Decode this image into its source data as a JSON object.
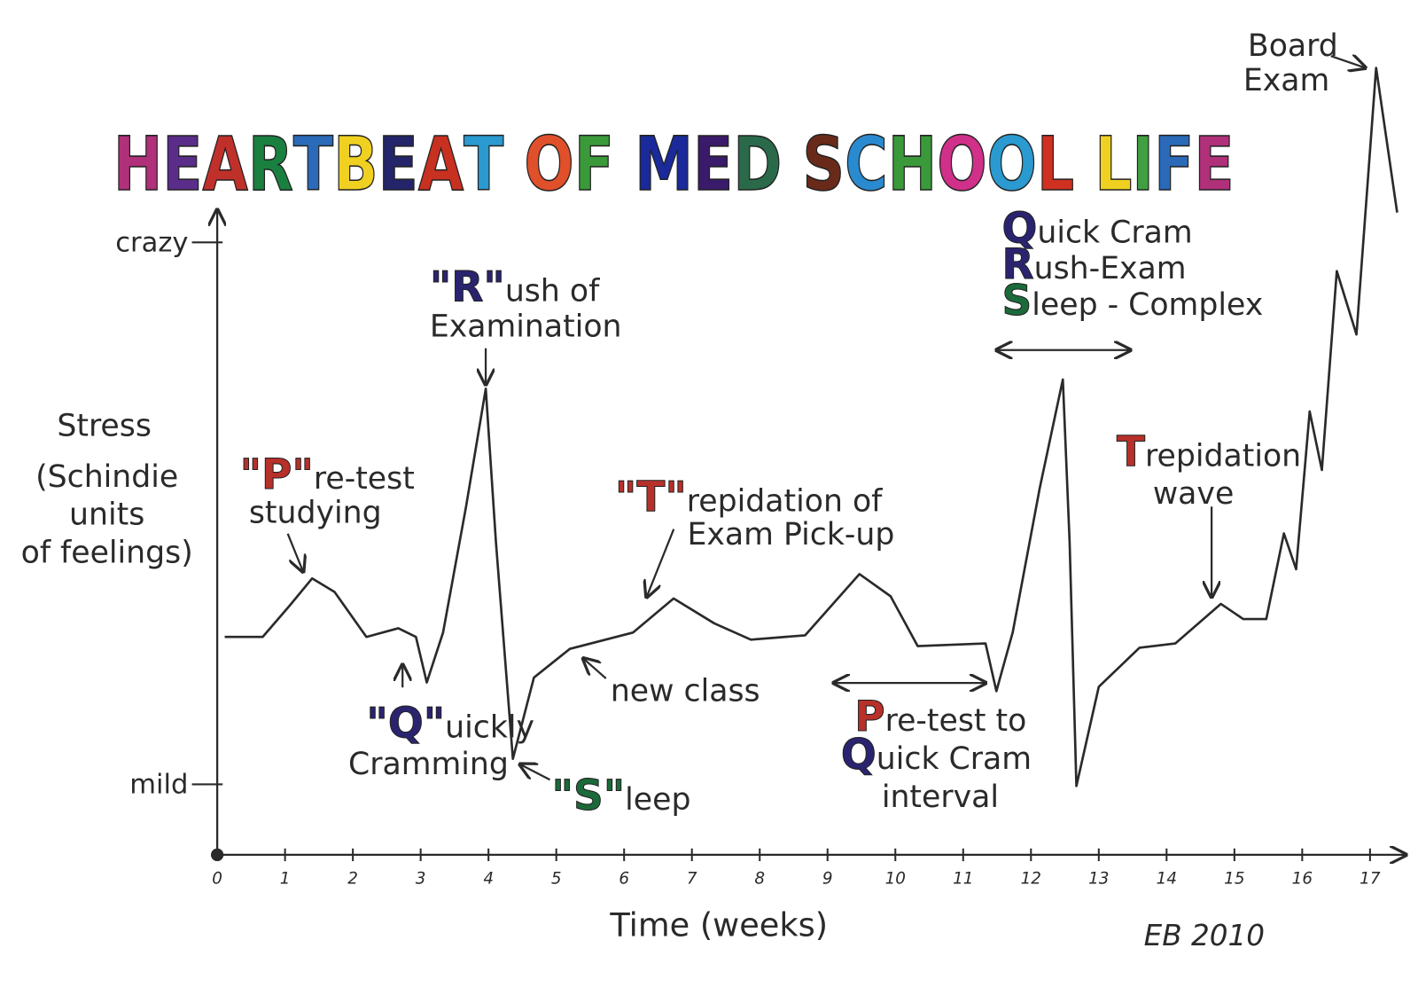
{
  "chart_data": {
    "type": "line",
    "title": "HEARTBEAT OF MED SCHOOL LIFE",
    "title_palette": [
      "#b0307a",
      "#5a2d8a",
      "#c0302a",
      "#1a8040",
      "#2a6ab8",
      "#f0d020",
      "#24246a",
      "#c83020",
      "#2a9ad0",
      "#e0502a",
      "#3a9a3a",
      "#1a2a9a",
      "#3a1a6a",
      "#2a6a4a",
      "#6a2a1a",
      "#2a8ad0",
      "#3a9a3a",
      "#d0308a",
      "#2a9ad0",
      "#d03020",
      "#f0d020",
      "#40a040",
      "#2a6ab8"
    ],
    "x_label": "Time (weeks)",
    "y_label": [
      "Stress",
      "(Schindie",
      "units",
      "of feelings)"
    ],
    "signature": "EB 2010",
    "xlim": [
      0,
      17.53
    ],
    "ylim": [
      -1.3,
      10.6
    ],
    "xticks": [
      0,
      1,
      2,
      3,
      4,
      5,
      6,
      7,
      8,
      9,
      10,
      11,
      12,
      13,
      14,
      15,
      16,
      17
    ],
    "yticks": [
      {
        "value": 0,
        "label": "mild"
      },
      {
        "value": 10,
        "label": "crazy"
      }
    ],
    "series": [
      {
        "color": "#2a2a2a",
        "x": [
          0.11,
          0.67,
          1.07,
          1.4,
          1.73,
          2.2,
          2.67,
          2.93,
          3.09,
          3.33,
          3.67,
          3.96,
          4.11,
          4.36,
          4.67,
          5.2,
          6.13,
          6.73,
          7.33,
          7.87,
          8.67,
          9.47,
          9.93,
          10.33,
          11.33,
          11.49,
          11.73,
          12.13,
          12.47,
          12.57,
          12.67,
          13,
          13.6,
          14.13,
          14.8,
          15.13,
          15.47,
          15.73,
          15.91,
          16.11,
          16.29,
          16.51,
          16.8,
          17.09,
          17.4
        ],
        "values": [
          2.72,
          2.72,
          3.3,
          3.8,
          3.55,
          2.72,
          2.88,
          2.72,
          1.88,
          2.8,
          5.13,
          7.3,
          4.47,
          0.47,
          1.97,
          2.5,
          2.8,
          3.43,
          2.97,
          2.67,
          2.75,
          3.88,
          3.47,
          2.55,
          2.6,
          1.72,
          2.8,
          5.47,
          7.47,
          4.47,
          -0.03,
          1.8,
          2.52,
          2.6,
          3.33,
          3.05,
          3.05,
          4.63,
          3.97,
          6.88,
          5.8,
          9.47,
          8.3,
          13.22,
          10.55
        ]
      }
    ],
    "annotations": [
      {
        "lines": [
          {
            "lead": "\"P\"",
            "color": "#b8302a",
            "text": "re-test"
          },
          {
            "text": "studying"
          }
        ]
      },
      {
        "lines": [
          {
            "lead": "\"Q\"",
            "color": "#2a2470",
            "text": "uickly"
          },
          {
            "text": "Cramming"
          }
        ]
      },
      {
        "lines": [
          {
            "lead": "\"R\"",
            "color": "#2a2470",
            "text": "ush of"
          },
          {
            "text": "Examination"
          }
        ]
      },
      {
        "lines": [
          {
            "lead": "\"S\"",
            "color": "#1a6a3a",
            "text": "leep"
          }
        ]
      },
      {
        "lines": [
          {
            "text": "new class"
          }
        ]
      },
      {
        "lines": [
          {
            "lead": "\"T\"",
            "color": "#b8302a",
            "text": "repidation of"
          },
          {
            "text": "Exam Pick-up"
          }
        ]
      },
      {
        "lines": [
          {
            "lead": "P",
            "color": "#b8302a",
            "text": "re-test to"
          },
          {
            "lead": "Q",
            "color": "#2a2470",
            "text": "uick Cram"
          },
          {
            "text": "interval"
          }
        ]
      },
      {
        "lines": [
          {
            "lead": "Q",
            "color": "#2a2470",
            "text": "uick Cram"
          },
          {
            "lead": "R",
            "color": "#2a2470",
            "text": "ush-Exam"
          },
          {
            "lead": "S",
            "color": "#1a6a3a",
            "text": "leep - Complex"
          }
        ]
      },
      {
        "lines": [
          {
            "lead": "T",
            "color": "#b8302a",
            "text": "repidation"
          },
          {
            "text": "wave"
          }
        ]
      },
      {
        "lines": [
          {
            "text": "Board"
          },
          {
            "text": "Exam"
          }
        ]
      }
    ]
  }
}
